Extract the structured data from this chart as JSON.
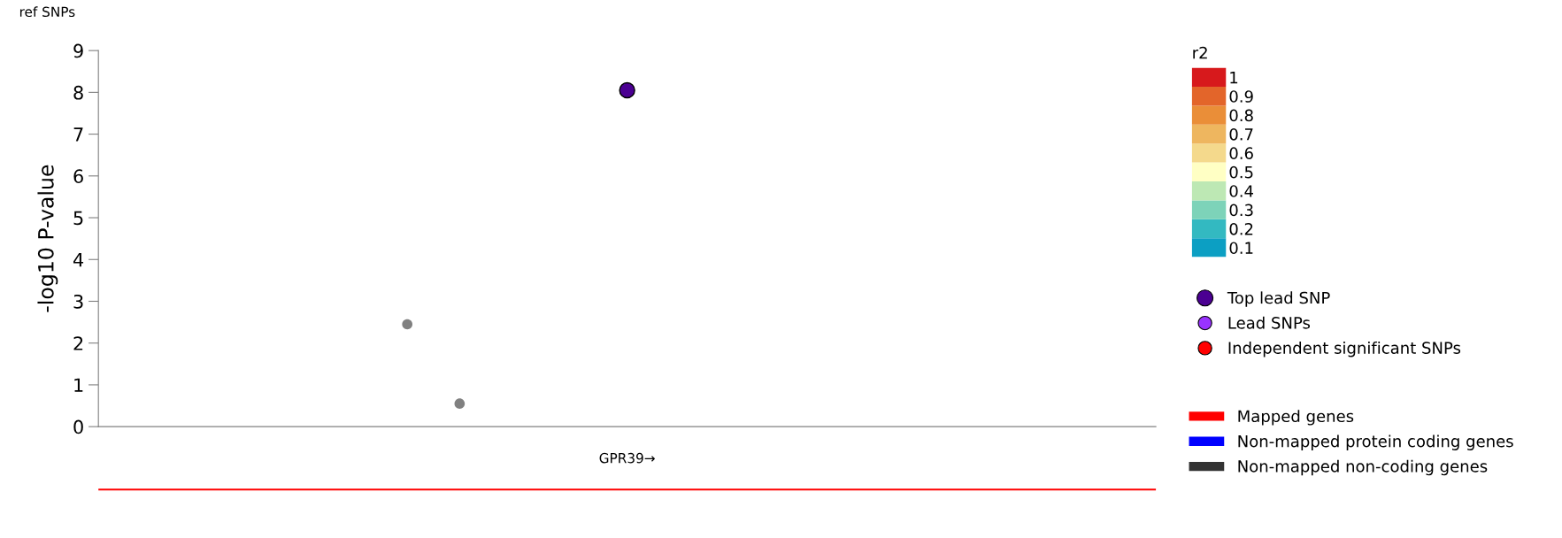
{
  "chart_data": [
    {
      "type": "scatter",
      "title": "ref SNPs",
      "ylabel": "-log10 P-value",
      "clabel": "r2",
      "clim": [
        0.05,
        1.05
      ],
      "cticks": [
        0.1,
        0.2,
        0.3,
        0.4,
        0.5,
        0.6,
        0.7,
        0.8,
        0.9,
        1
      ],
      "categories": [
        null,
        null,
        null,
        null,
        null,
        null,
        null,
        null,
        null,
        null,
        null,
        null,
        null,
        null,
        null,
        null,
        null,
        null,
        null,
        null,
        null,
        null,
        null,
        null,
        null,
        null,
        null,
        null,
        null,
        null,
        null,
        null,
        null,
        null,
        null,
        null,
        null,
        null,
        null,
        null,
        null,
        null,
        null,
        null,
        null,
        null,
        null,
        null,
        null,
        null,
        null,
        null,
        null,
        null,
        null,
        null,
        null,
        null,
        null,
        null,
        null,
        null,
        null,
        null,
        null,
        null,
        null,
        null,
        null,
        null,
        null,
        null,
        null,
        null,
        null,
        null,
        null,
        null,
        null,
        null,
        null,
        null,
        null,
        null,
        null,
        null,
        null,
        null,
        null,
        null,
        null,
        null,
        null,
        null,
        null,
        null,
        null,
        null,
        null,
        null,
        null
      ],
      "ylim": [
        0,
        9
      ],
      "yticks": [
        0,
        1,
        2,
        3,
        4,
        5,
        6,
        7,
        8,
        9
      ],
      "tick_labels": "y",
      "grid": false,
      "legend": "right",
      "marker": "circle",
      "series": [
        {
          "values": [
            null,
            null,
            null,
            null,
            null,
            null,
            null,
            null,
            null,
            null,
            null,
            null,
            null,
            null,
            null,
            null,
            null,
            null,
            null,
            null,
            null,
            null,
            null,
            null,
            null,
            null,
            null,
            null,
            null,
            2.45,
            null,
            null,
            null,
            null,
            0.55,
            null,
            null,
            null,
            null,
            null,
            null,
            null,
            null,
            null,
            null,
            null,
            null,
            null,
            null,
            null,
            null,
            null,
            null,
            null,
            null,
            null,
            null,
            null,
            null,
            null,
            null,
            null,
            null,
            null,
            null,
            null,
            null,
            null,
            null,
            null,
            null,
            null,
            null,
            null,
            null,
            null,
            null,
            null,
            null,
            null,
            null,
            null,
            null,
            null,
            null,
            null,
            null,
            null,
            null,
            null,
            null,
            null,
            null,
            null,
            null,
            null,
            null,
            null,
            null,
            null,
            null
          ],
          "color": "#808080"
        },
        {
          "name": "Top lead SNP",
          "values": [
            null,
            null,
            null,
            null,
            null,
            null,
            null,
            null,
            null,
            null,
            null,
            null,
            null,
            null,
            null,
            null,
            null,
            null,
            null,
            null,
            null,
            null,
            null,
            null,
            null,
            null,
            null,
            null,
            null,
            null,
            null,
            null,
            null,
            null,
            null,
            null,
            null,
            null,
            null,
            null,
            null,
            null,
            null,
            null,
            null,
            null,
            null,
            null,
            null,
            null,
            8.05,
            null,
            null,
            null,
            null,
            null,
            null,
            null,
            null,
            null,
            null,
            null,
            null,
            null,
            null,
            null,
            null,
            null,
            null,
            null,
            null,
            null,
            null,
            null,
            null,
            null,
            null,
            null,
            null,
            null,
            null,
            null,
            null,
            null,
            null,
            null,
            null,
            null,
            null,
            null,
            null,
            null,
            null,
            null,
            null,
            null,
            null,
            null,
            null,
            null,
            null
          ],
          "color": "#4b0092"
        },
        {
          "name": "Lead SNPs",
          "color": "#9933ff",
          "values": [
            null,
            null,
            null,
            null,
            null,
            null,
            null,
            null,
            null,
            null,
            null,
            null,
            null,
            null,
            null,
            null,
            null,
            null,
            null,
            null,
            null,
            null,
            null,
            null,
            null,
            null,
            null,
            null,
            null,
            null,
            null,
            null,
            null,
            null,
            null,
            null,
            null,
            null,
            null,
            null,
            null,
            null,
            null,
            null,
            null,
            null,
            null,
            null,
            null,
            null,
            null,
            null,
            null,
            null,
            null,
            null,
            null,
            null,
            null,
            null,
            null,
            null,
            null,
            null,
            null,
            null,
            null,
            null,
            null,
            null,
            null,
            null,
            null,
            null,
            null,
            null,
            null,
            null,
            null,
            null,
            null,
            null,
            null,
            null,
            null,
            null,
            null,
            null,
            null,
            null,
            null,
            null,
            null,
            null,
            null,
            null,
            null,
            null,
            null,
            null,
            null
          ]
        },
        {
          "name": "Independent significant SNPs",
          "color": "#ff0000",
          "values": [
            null,
            null,
            null,
            null,
            null,
            null,
            null,
            null,
            null,
            null,
            null,
            null,
            null,
            null,
            null,
            null,
            null,
            null,
            null,
            null,
            null,
            null,
            null,
            null,
            null,
            null,
            null,
            null,
            null,
            null,
            null,
            null,
            null,
            null,
            null,
            null,
            null,
            null,
            null,
            null,
            null,
            null,
            null,
            null,
            null,
            null,
            null,
            null,
            null,
            null,
            null,
            null,
            null,
            null,
            null,
            null,
            null,
            null,
            null,
            null,
            null,
            null,
            null,
            null,
            null,
            null,
            null,
            null,
            null,
            null,
            null,
            null,
            null,
            null,
            null,
            null,
            null,
            null,
            null,
            null,
            null,
            null,
            null,
            null,
            null,
            null,
            null,
            null,
            null,
            null,
            null,
            null,
            null,
            null,
            null,
            null,
            null,
            null,
            null,
            null,
            null
          ]
        }
      ]
    },
    {
      "type": "other",
      "legend": "right",
      "annotations": [
        "GPR39→"
      ],
      "series": [
        {
          "name": "Mapped genes",
          "color": "#ff0000"
        },
        {
          "name": "Non-mapped protein coding genes",
          "color": "#0000ff"
        },
        {
          "name": "Non-mapped non-coding genes",
          "color": "#333333"
        }
      ]
    }
  ]
}
